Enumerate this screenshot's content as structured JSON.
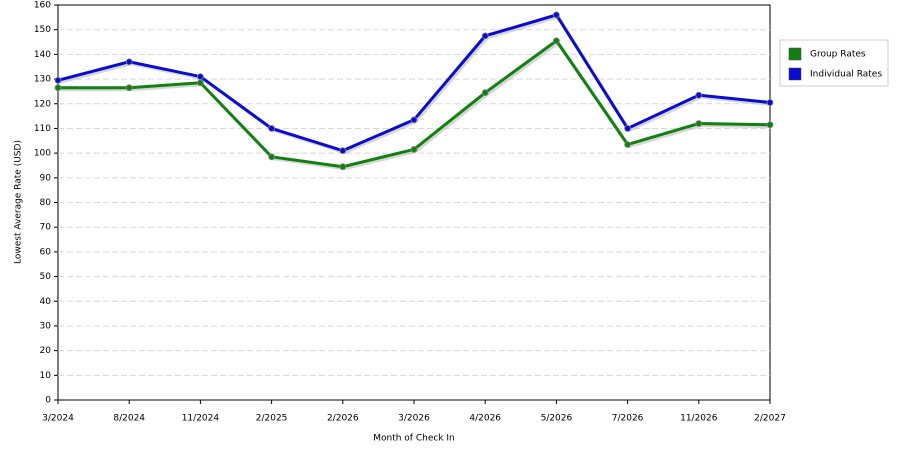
{
  "chart_data": {
    "type": "line",
    "x_label": "Month of Check In",
    "y_label": "Lowest Average Rate (USD)",
    "categories": [
      "3/2024",
      "8/2024",
      "11/2024",
      "2/2025",
      "2/2026",
      "3/2026",
      "4/2026",
      "5/2026",
      "7/2026",
      "11/2026",
      "2/2027"
    ],
    "series": [
      {
        "name": "Group Rates",
        "color": "#108010",
        "values": [
          126.5,
          126.5,
          128.5,
          98.5,
          94.5,
          101.5,
          124.5,
          145.5,
          103.5,
          112,
          111.5
        ]
      },
      {
        "name": "Individual Rates",
        "color": "#0a0ad0",
        "values": [
          129.5,
          137,
          131,
          110,
          101,
          113.5,
          147.5,
          156,
          110,
          123.5,
          120.5
        ]
      }
    ],
    "ylim": [
      0,
      160
    ],
    "yticks": [
      0,
      10,
      20,
      30,
      40,
      50,
      60,
      70,
      80,
      90,
      100,
      110,
      120,
      130,
      140,
      150,
      160
    ],
    "grid": true,
    "legend": "right"
  }
}
